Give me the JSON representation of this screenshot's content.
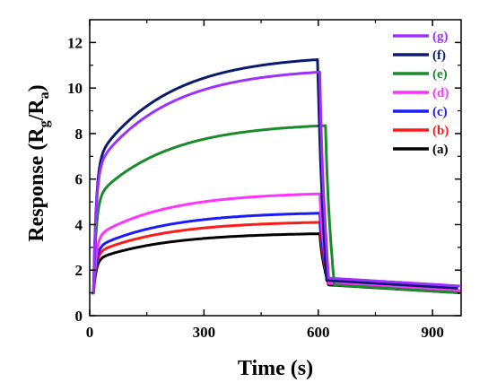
{
  "chart_data": {
    "type": "line",
    "xlabel": "Time (s)",
    "ylabel": {
      "main": "Response (R",
      "sub1": "g",
      "mid": "/R",
      "sub2": "a",
      "end": ")"
    },
    "xlim": [
      0,
      975
    ],
    "ylim": [
      0,
      13
    ],
    "x_ticks": [
      0,
      300,
      600,
      900
    ],
    "x_tick_labels": [
      "0",
      "300",
      "600",
      "900"
    ],
    "y_ticks": [
      0,
      2,
      4,
      6,
      8,
      10,
      12
    ],
    "y_tick_labels": [
      "0",
      "2",
      "4",
      "6",
      "8",
      "10",
      "12"
    ],
    "grid": false,
    "legend_position": "top-right",
    "series": [
      {
        "name": "(g)",
        "color": "#9b30ff",
        "peak": 10.7,
        "t_off": 605,
        "final": 1.3
      },
      {
        "name": "(f)",
        "color": "#0a1a6e",
        "peak": 11.25,
        "t_off": 600,
        "final": 1.2
      },
      {
        "name": "(e)",
        "color": "#1a8a2a",
        "peak": 8.35,
        "t_off": 620,
        "final": 1.0
      },
      {
        "name": "(d)",
        "color": "#ff33ff",
        "peak": 5.35,
        "t_off": 605,
        "final": 1.1
      },
      {
        "name": "(c)",
        "color": "#1a1aff",
        "peak": 4.5,
        "t_off": 605,
        "final": 1.1
      },
      {
        "name": "(b)",
        "color": "#ff1a1a",
        "peak": 4.1,
        "t_off": 605,
        "final": 1.05
      },
      {
        "name": "(a)",
        "color": "#000000",
        "peak": 3.6,
        "t_off": 605,
        "final": 1.0
      }
    ]
  }
}
